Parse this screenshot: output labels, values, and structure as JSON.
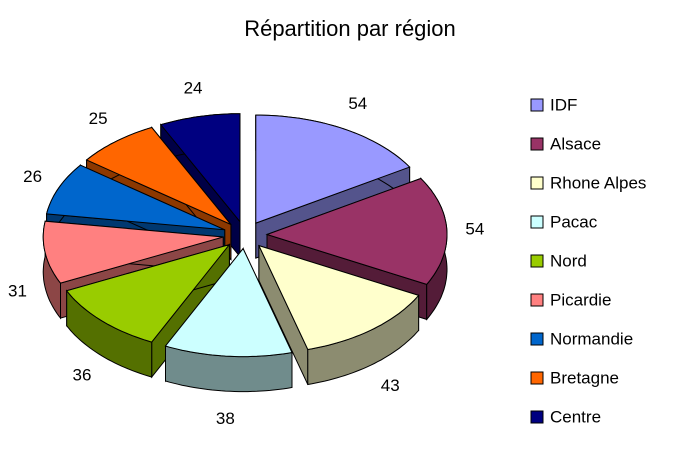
{
  "chart_data": {
    "type": "pie",
    "title": "Répartition par région",
    "categories": [
      "IDF",
      "Alsace",
      "Rhone Alpes",
      "Pacac",
      "Nord",
      "Picardie",
      "Normandie",
      "Bretagne",
      "Centre"
    ],
    "values": [
      54,
      54,
      43,
      38,
      36,
      31,
      26,
      25,
      24
    ],
    "colors": [
      "#9999ff",
      "#993366",
      "#ffffcc",
      "#ccffff",
      "#99cc00",
      "#ff8080",
      "#0066cc",
      "#ff6600",
      "#000080"
    ],
    "legend": "right",
    "style": "3d-exploded"
  }
}
